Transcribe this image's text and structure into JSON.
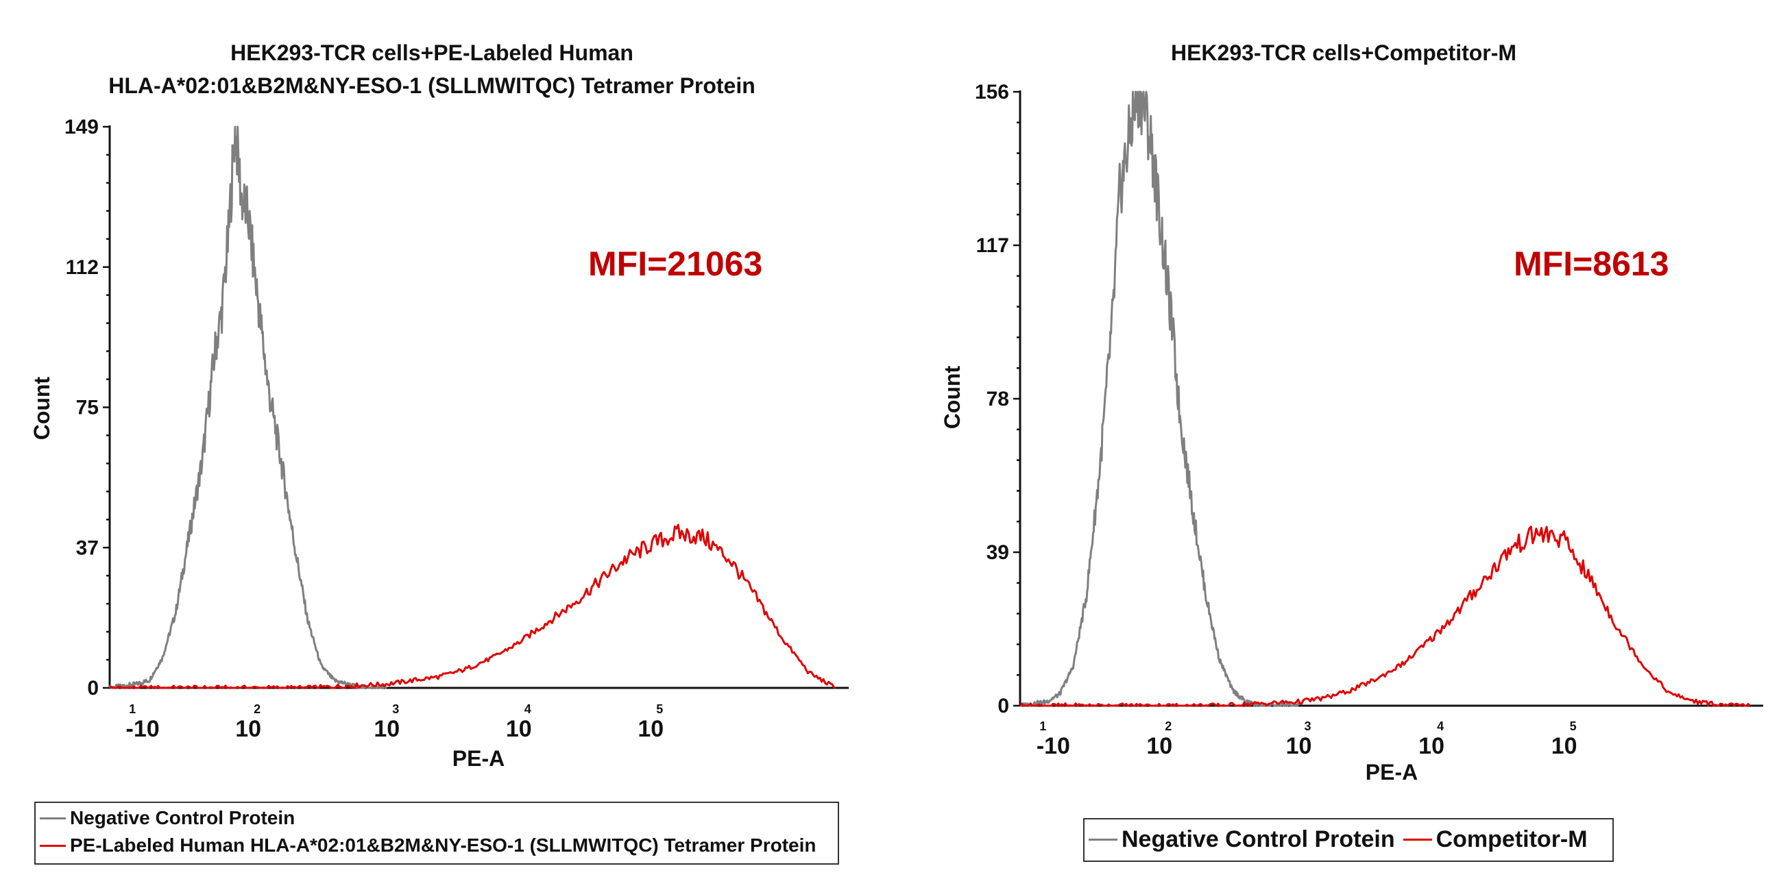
{
  "chart_data": [
    {
      "type": "line",
      "title_lines": [
        "HEK293-TCR cells+PE-Labeled Human",
        "HLA-A*02:01&B2M&NY-ESO-1 (SLLMWITQC) Tetramer Protein"
      ],
      "xlabel": "PE-A",
      "ylabel": "Count",
      "yticks": [
        "0",
        "37",
        "75",
        "112",
        "149"
      ],
      "ylim": [
        0,
        149
      ],
      "xtick_labels": [
        {
          "base": "-10",
          "exp": "1"
        },
        {
          "base": "10",
          "exp": "2"
        },
        {
          "base": "10",
          "exp": "3"
        },
        {
          "base": "10",
          "exp": "4"
        },
        {
          "base": "10",
          "exp": "5"
        }
      ],
      "annotation": "MFI=21063",
      "legend": [
        "Negative Control Protein",
        "PE-Labeled Human HLA-A*02:01&B2M&NY-ESO-1 (SLLMWITQC) Tetramer Protein"
      ],
      "series": [
        {
          "name": "Negative Control Protein",
          "color": "#7f7f7f",
          "x": [
            -0.3,
            -0.1,
            0.0,
            0.1,
            0.2,
            0.3,
            0.4,
            0.45,
            0.5,
            0.55,
            0.6,
            0.65,
            0.7,
            0.75,
            0.8,
            0.85,
            0.9,
            1.0,
            1.1,
            1.2,
            1.3,
            1.4,
            1.5,
            1.6,
            1.8
          ],
          "y": [
            0,
            1,
            2,
            8,
            20,
            40,
            60,
            75,
            90,
            100,
            120,
            149,
            130,
            125,
            110,
            95,
            80,
            60,
            38,
            18,
            6,
            2,
            1,
            0,
            0
          ]
        },
        {
          "name": "PE-Labeled Human HLA-A*02:01&B2M&NY-ESO-1 (SLLMWITQC) Tetramer Protein",
          "color": "#e00000",
          "x": [
            -0.3,
            0.5,
            1.2,
            1.8,
            2.0,
            2.2,
            2.4,
            2.6,
            2.8,
            3.0,
            3.2,
            3.4,
            3.6,
            3.8,
            4.0,
            4.2,
            4.4,
            4.6,
            4.8,
            5.0,
            5.2
          ],
          "y": [
            0,
            0,
            0,
            1,
            2,
            3,
            5,
            8,
            12,
            17,
            22,
            28,
            34,
            38,
            41,
            40,
            34,
            24,
            13,
            4,
            0
          ]
        }
      ]
    },
    {
      "type": "line",
      "title_lines": [
        "HEK293-TCR cells+Competitor-M"
      ],
      "xlabel": "PE-A",
      "ylabel": "Count",
      "yticks": [
        "0",
        "39",
        "78",
        "117",
        "156"
      ],
      "ylim": [
        0,
        156
      ],
      "xtick_labels": [
        {
          "base": "-10",
          "exp": "1"
        },
        {
          "base": "10",
          "exp": "2"
        },
        {
          "base": "10",
          "exp": "3"
        },
        {
          "base": "10",
          "exp": "4"
        },
        {
          "base": "10",
          "exp": "5"
        }
      ],
      "annotation": "MFI=8613",
      "legend": [
        "Negative Control Protein",
        "Competitor-M"
      ],
      "series": [
        {
          "name": "Negative Control Protein",
          "color": "#7f7f7f",
          "x": [
            -0.3,
            -0.1,
            0.0,
            0.1,
            0.2,
            0.3,
            0.4,
            0.45,
            0.5,
            0.55,
            0.6,
            0.65,
            0.7,
            0.75,
            0.8,
            0.85,
            0.9,
            1.0,
            1.1,
            1.2,
            1.3,
            1.4,
            1.5,
            1.6,
            1.8
          ],
          "y": [
            0,
            1,
            3,
            10,
            28,
            60,
            100,
            130,
            140,
            150,
            156,
            150,
            140,
            125,
            110,
            95,
            75,
            50,
            28,
            12,
            4,
            1,
            0,
            0,
            0
          ]
        },
        {
          "name": "Competitor-M",
          "color": "#e00000",
          "x": [
            -0.3,
            0.5,
            1.2,
            1.8,
            2.0,
            2.2,
            2.4,
            2.6,
            2.8,
            3.0,
            3.2,
            3.4,
            3.6,
            3.8,
            4.0,
            4.2,
            4.4,
            4.6,
            4.8,
            5.0,
            5.2
          ],
          "y": [
            0,
            0,
            0,
            1,
            2,
            4,
            7,
            11,
            17,
            24,
            32,
            40,
            44,
            42,
            32,
            20,
            10,
            3,
            1,
            0,
            0
          ]
        }
      ]
    }
  ]
}
